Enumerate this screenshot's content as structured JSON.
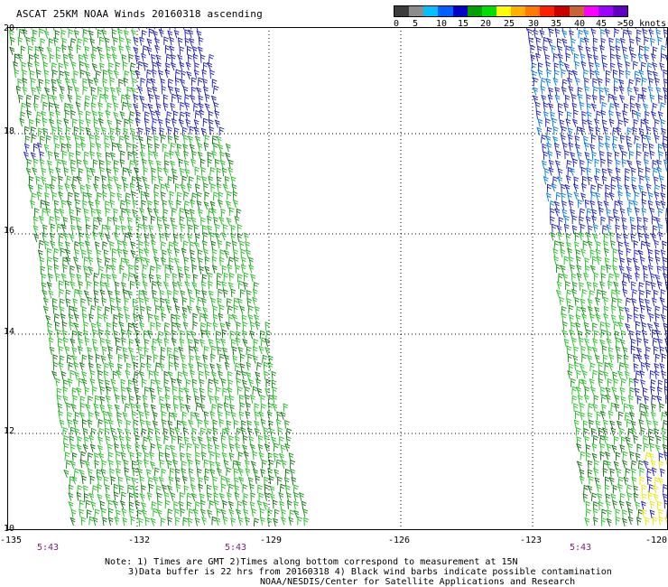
{
  "title": "ASCAT 25KM NOAA Winds 20160318 ascending",
  "color_scale": {
    "colors": [
      "#3c3c3c",
      "#8c8c8c",
      "#00c0ff",
      "#0060ff",
      "#0000c8",
      "#00a000",
      "#00e000",
      "#ffff00",
      "#ffb000",
      "#ff7800",
      "#ff2000",
      "#c80000",
      "#c86432",
      "#ff00ff",
      "#a000ff",
      "#6000c0"
    ],
    "labels": [
      "0",
      "5",
      "10",
      "15",
      "20",
      "25",
      "30",
      "35",
      "40",
      "45",
      ">50 knots"
    ]
  },
  "axes": {
    "y_ticks": [
      "20",
      "18",
      "16",
      "14",
      "12",
      "10"
    ],
    "x_ticks": [
      "-135",
      "-132",
      "-129",
      "-126",
      "-123",
      "-120"
    ]
  },
  "time_labels": [
    "5:43",
    "5:43",
    "5:43"
  ],
  "notes": {
    "line1": "Note: 1) Times are GMT 2)Times along bottom correspond to measurement at 15N",
    "line2": "3)Data buffer is 22 hrs from 20160318 4) Black wind barbs indicate possible contamination",
    "line3": "NOAA/NESDIS/Center for Satellite Applications and Research"
  }
}
